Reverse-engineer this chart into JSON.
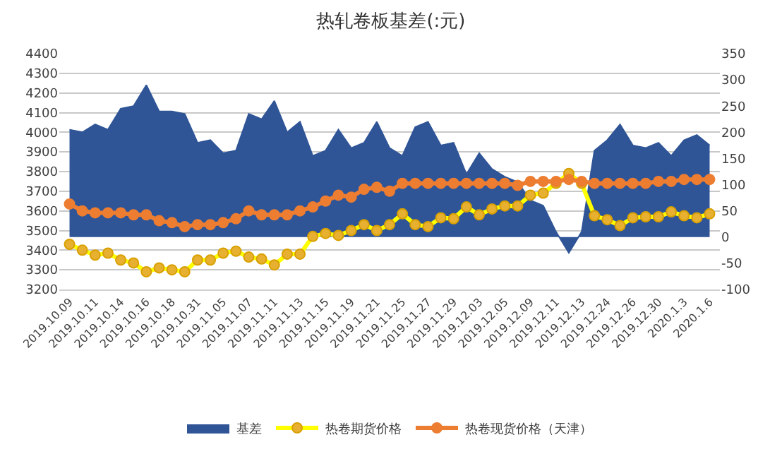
{
  "chart_data": {
    "type": "line",
    "title": "热轧卷板基差(:元)",
    "categories": [
      "2019.10.09",
      null,
      "2019.10.11",
      null,
      "2019.10.14",
      null,
      "2019.10.16",
      null,
      "2019.10.18",
      null,
      "2019.10.31",
      null,
      "2019.11.05",
      null,
      "2019.11.07",
      null,
      "2019.11.11",
      null,
      "2019.11.13",
      null,
      "2019.11.15",
      null,
      "2019.11.19",
      null,
      "2019.11.21",
      null,
      "2019.11.25",
      null,
      "2019.11.27",
      null,
      "2019.11.29",
      null,
      "2019.12.03",
      null,
      "2019.12.05",
      null,
      "2019.12.09",
      null,
      "2019.12.11",
      null,
      "2019.12.13",
      null,
      "2019.12.24",
      null,
      "2019.12.26",
      null,
      "2019.12.30",
      null,
      "2020.1.3",
      null,
      "2020.1.6"
    ],
    "series": [
      {
        "name": "基差",
        "type": "area",
        "axis": "y2",
        "color": "#2f5597",
        "values": [
          205,
          200,
          215,
          205,
          245,
          250,
          290,
          240,
          240,
          235,
          180,
          185,
          160,
          165,
          235,
          225,
          260,
          200,
          220,
          155,
          165,
          205,
          170,
          180,
          220,
          170,
          155,
          210,
          220,
          175,
          180,
          120,
          160,
          130,
          115,
          105,
          70,
          60,
          10,
          -30,
          10,
          165,
          185,
          215,
          175,
          170,
          180,
          155,
          185,
          195,
          175
        ]
      },
      {
        "name": "热卷期货价格",
        "color": "#ffff00",
        "marker": "circle",
        "values": [
          3430,
          3400,
          3375,
          3385,
          3350,
          3335,
          3290,
          3310,
          3300,
          3290,
          3350,
          3350,
          3385,
          3395,
          3365,
          3355,
          3325,
          3380,
          3380,
          3470,
          3485,
          3475,
          3500,
          3530,
          3500,
          3530,
          3585,
          3530,
          3520,
          3565,
          3560,
          3620,
          3580,
          3610,
          3625,
          3625,
          3680,
          3690,
          3740,
          3790,
          3740,
          3575,
          3555,
          3525,
          3565,
          3570,
          3570,
          3595,
          3575,
          3565,
          3585
        ]
      },
      {
        "name": "热卷现货价格（天津）",
        "color": "#ed7d31",
        "marker": "circle",
        "values": [
          3635,
          3600,
          3590,
          3590,
          3590,
          3580,
          3580,
          3550,
          3540,
          3520,
          3530,
          3530,
          3540,
          3560,
          3600,
          3580,
          3580,
          3580,
          3600,
          3620,
          3650,
          3680,
          3670,
          3710,
          3720,
          3700,
          3740,
          3740,
          3740,
          3740,
          3740,
          3740,
          3740,
          3740,
          3740,
          3730,
          3750,
          3750,
          3750,
          3760,
          3750,
          3740,
          3740,
          3740,
          3740,
          3740,
          3750,
          3750,
          3760,
          3760,
          3760
        ]
      }
    ],
    "ylim": [
      3200,
      4400
    ],
    "yticks": [
      3200,
      3300,
      3400,
      3500,
      3600,
      3700,
      3800,
      3900,
      4000,
      4100,
      4200,
      4300,
      4400
    ],
    "y2lim": [
      -100,
      350
    ],
    "y2ticks": [
      -100,
      -50,
      0,
      50,
      100,
      150,
      200,
      250,
      300,
      350
    ],
    "grid": "y",
    "legend": "bottom"
  }
}
